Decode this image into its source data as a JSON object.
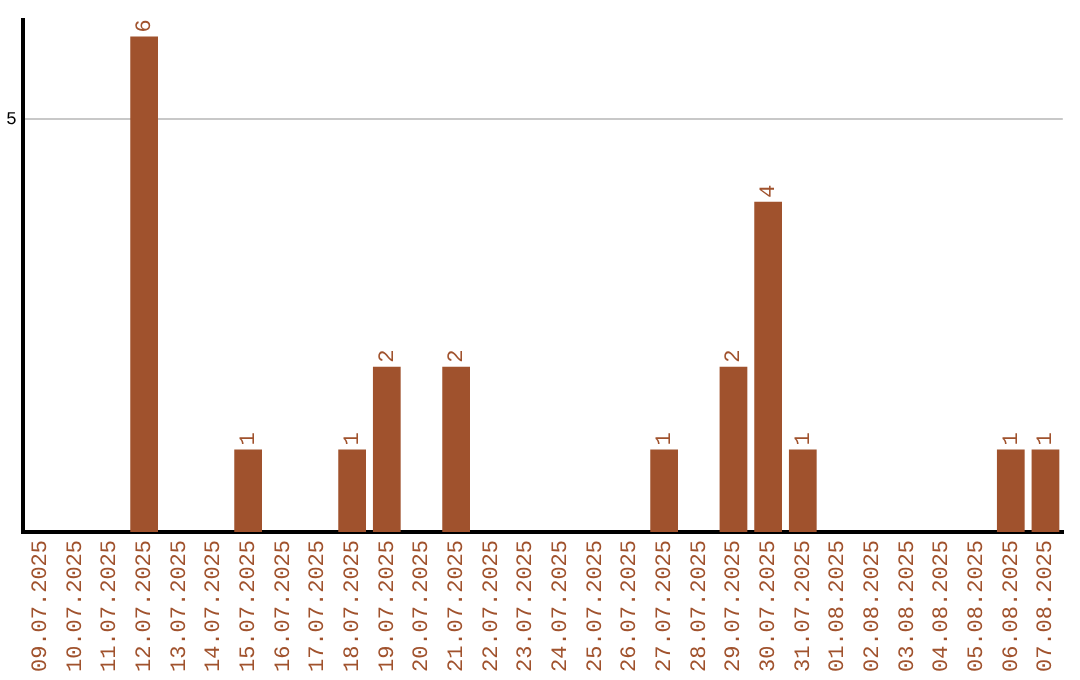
{
  "chart_data": {
    "type": "bar",
    "categories": [
      "09.07.2025",
      "10.07.2025",
      "11.07.2025",
      "12.07.2025",
      "13.07.2025",
      "14.07.2025",
      "15.07.2025",
      "16.07.2025",
      "17.07.2025",
      "18.07.2025",
      "19.07.2025",
      "20.07.2025",
      "21.07.2025",
      "22.07.2025",
      "23.07.2025",
      "24.07.2025",
      "25.07.2025",
      "26.07.2025",
      "27.07.2025",
      "28.07.2025",
      "29.07.2025",
      "30.07.2025",
      "31.07.2025",
      "01.08.2025",
      "02.08.2025",
      "03.08.2025",
      "04.08.2025",
      "05.08.2025",
      "06.08.2025",
      "07.08.2025"
    ],
    "values": [
      0,
      0,
      0,
      6,
      0,
      0,
      1,
      0,
      0,
      1,
      2,
      0,
      2,
      0,
      0,
      0,
      0,
      0,
      1,
      0,
      2,
      4,
      1,
      0,
      0,
      0,
      0,
      0,
      1,
      1
    ],
    "value_labels": [
      null,
      null,
      null,
      "6",
      null,
      null,
      "1",
      null,
      null,
      "1",
      "2",
      null,
      "2",
      null,
      null,
      null,
      null,
      null,
      "1",
      null,
      "2",
      "4",
      "1",
      null,
      null,
      null,
      null,
      null,
      "1",
      "1"
    ],
    "color": "#a0522d",
    "ylim": [
      0,
      6.2
    ],
    "yticks": [
      5
    ],
    "grid": "y"
  }
}
